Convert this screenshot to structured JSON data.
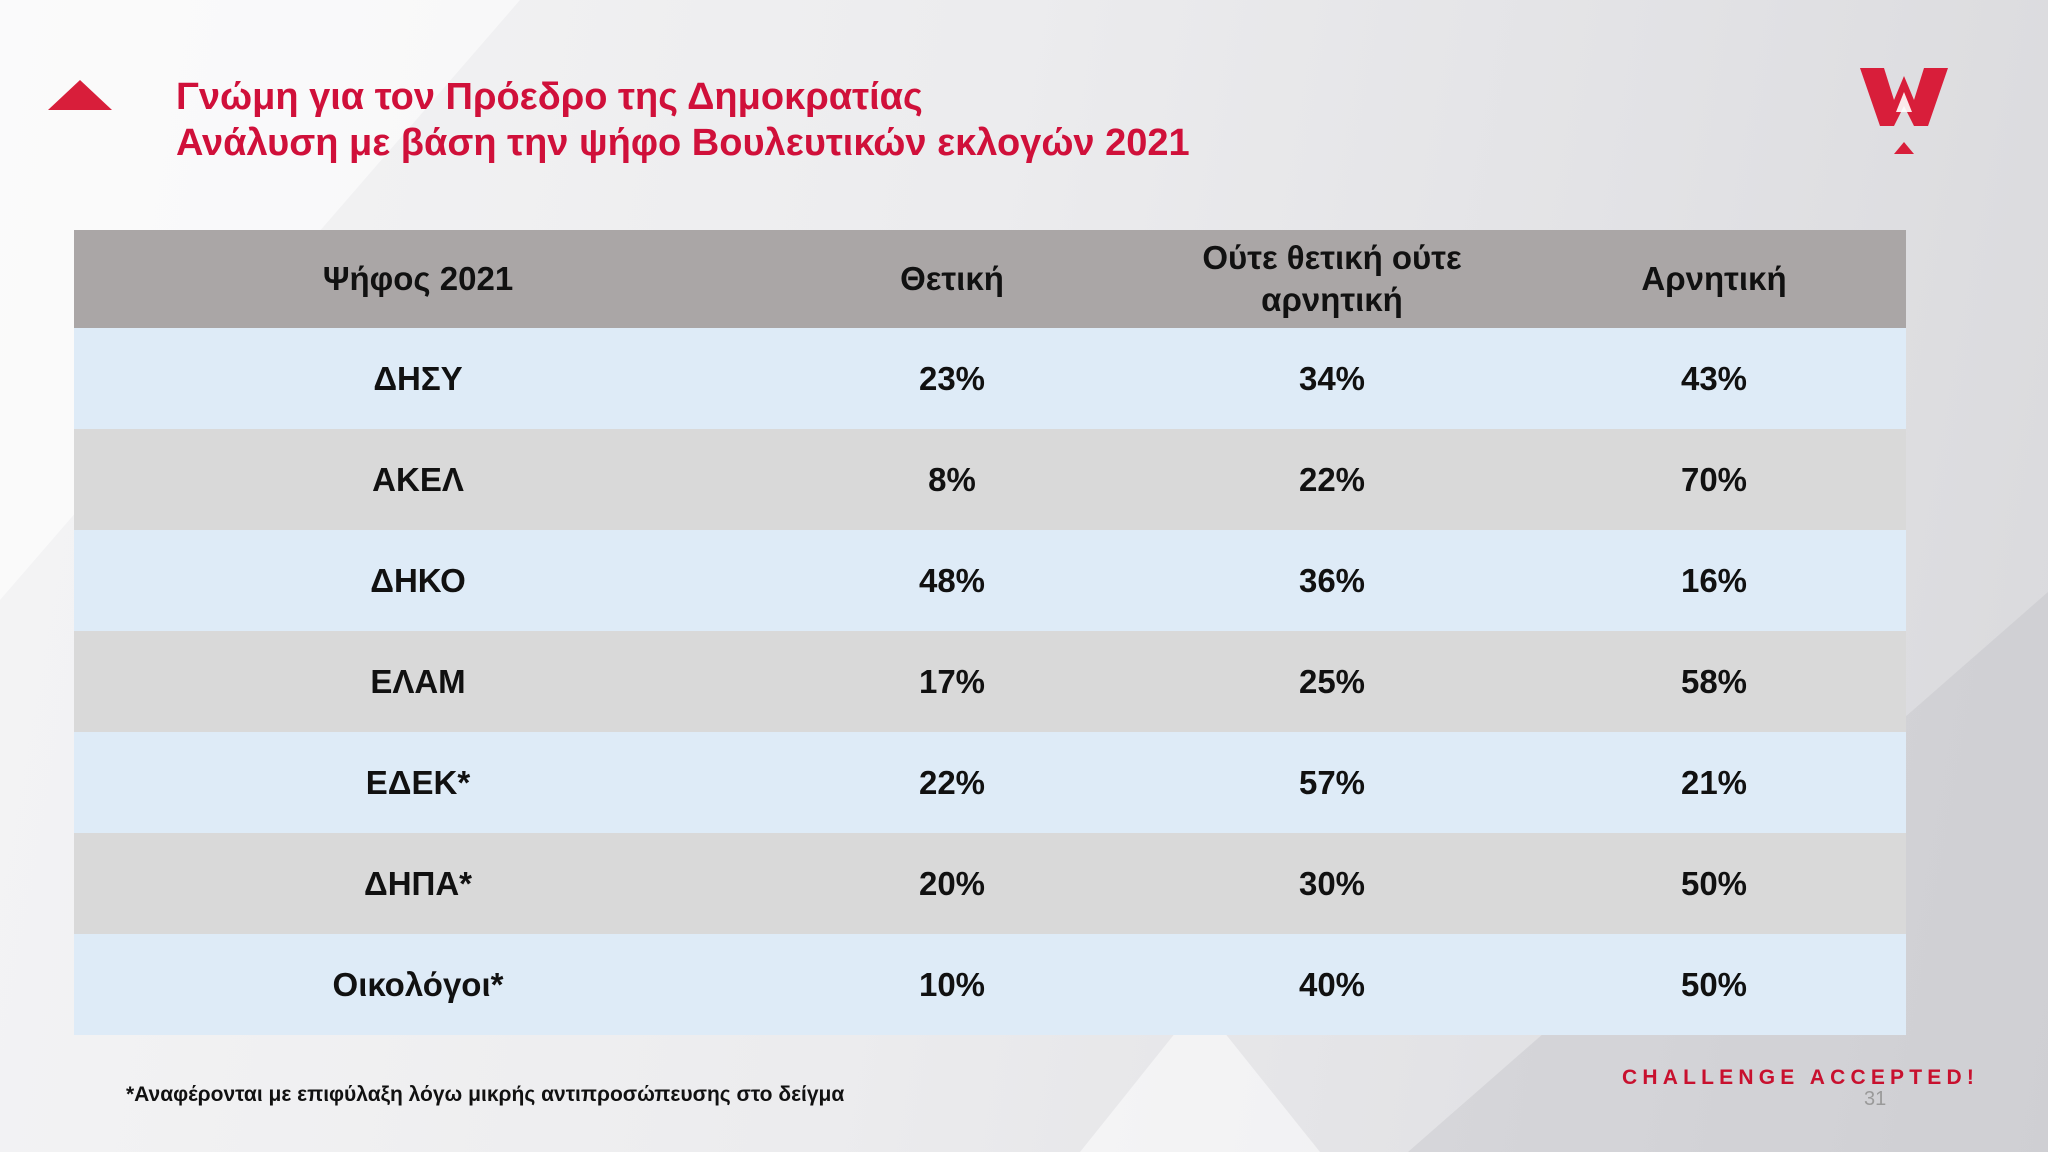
{
  "header": {
    "title_line1": "Γνώμη για τον Πρόεδρο της Δημοκρατίας",
    "title_line2": "Ανάλυση με βάση την ψήφο Βουλευτικών εκλογών 2021"
  },
  "table": {
    "columns": [
      "Ψήφος 2021",
      "Θετική",
      "Ούτε θετική ούτε αρνητική",
      "Αρνητική"
    ],
    "rows": [
      [
        "ΔΗΣΥ",
        "23%",
        "34%",
        "43%"
      ],
      [
        "ΑΚΕΛ",
        "8%",
        "22%",
        "70%"
      ],
      [
        "ΔΗΚΟ",
        "48%",
        "36%",
        "16%"
      ],
      [
        "ΕΛΑΜ",
        "17%",
        "25%",
        "58%"
      ],
      [
        "ΕΔΕΚ*",
        "22%",
        "57%",
        "21%"
      ],
      [
        "ΔΗΠΑ*",
        "20%",
        "30%",
        "50%"
      ],
      [
        "Οικολόγοι*",
        "10%",
        "40%",
        "50%"
      ]
    ]
  },
  "footer": {
    "note": "*Αναφέρονται με επιφύλαξη λόγω μικρής αντιπροσώπευσης στο δείγμα",
    "slogan": "CHALLENGE ACCEPTED!",
    "page_number": "31"
  },
  "colors": {
    "brand_red": "#d0103a",
    "header_row": "#aaa6a6",
    "row_blue": "#deebf7",
    "row_grey": "#d9d9d9"
  },
  "icons": {
    "title_marker": "red-triangle-icon",
    "logo": "w-crown-logo"
  }
}
